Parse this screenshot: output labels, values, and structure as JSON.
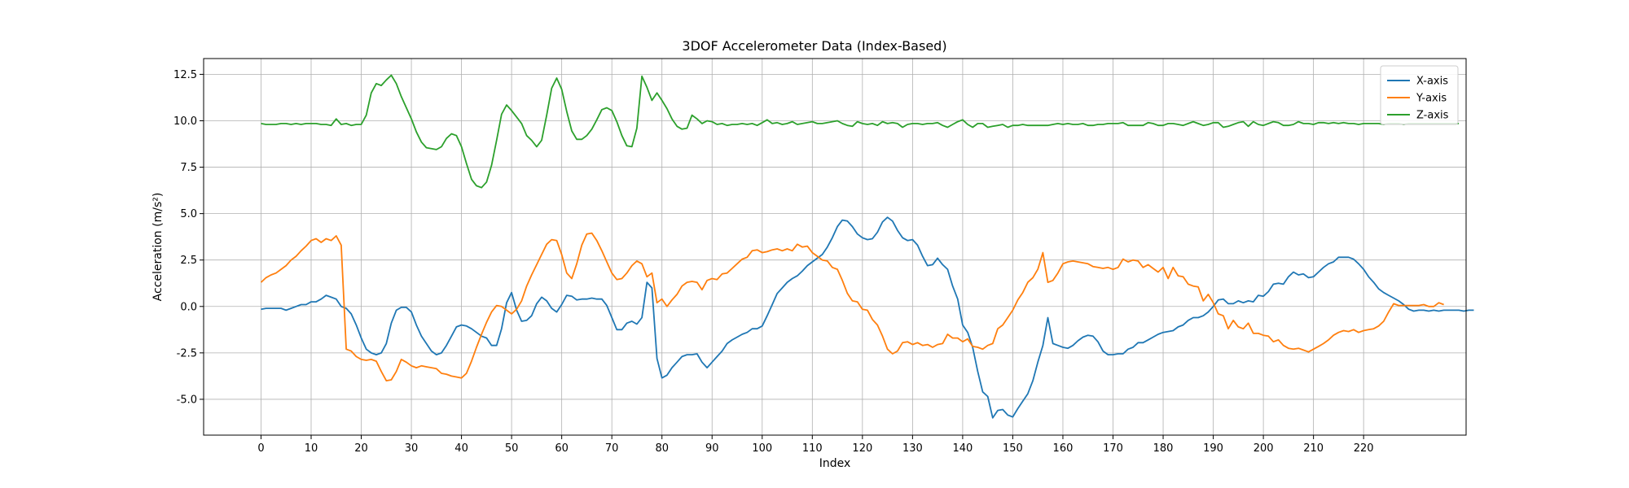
{
  "chart_data": {
    "type": "line",
    "title": "3DOF Accelerometer Data (Index-Based)",
    "xlabel": "Index",
    "ylabel": "Acceleration (m/s²)",
    "xlim": [
      -11.45,
      240.45
    ],
    "ylim": [
      -6.93,
      13.35
    ],
    "xticks": [
      0,
      10,
      20,
      30,
      40,
      50,
      60,
      70,
      80,
      90,
      100,
      110,
      120,
      130,
      140,
      150,
      160,
      170,
      180,
      190,
      200,
      210,
      220
    ],
    "yticks": [
      -5.0,
      -2.5,
      0.0,
      2.5,
      5.0,
      7.5,
      10.0,
      12.5
    ],
    "grid": true,
    "legend_position": "top-right",
    "x_start": 0,
    "series": [
      {
        "name": "X-axis",
        "color": "#1f77b4",
        "values": [
          -0.15,
          -0.1,
          -0.1,
          -0.1,
          -0.1,
          -0.2,
          -0.1,
          0.0,
          0.1,
          0.1,
          0.25,
          0.25,
          0.4,
          0.6,
          0.5,
          0.4,
          0.0,
          -0.1,
          -0.4,
          -1.0,
          -1.7,
          -2.3,
          -2.5,
          -2.6,
          -2.5,
          -2.0,
          -0.9,
          -0.2,
          -0.05,
          -0.05,
          -0.3,
          -1.0,
          -1.6,
          -2.0,
          -2.4,
          -2.6,
          -2.5,
          -2.1,
          -1.6,
          -1.1,
          -1.0,
          -1.05,
          -1.2,
          -1.4,
          -1.6,
          -1.7,
          -2.1,
          -2.1,
          -1.2,
          0.2,
          0.75,
          -0.2,
          -0.8,
          -0.75,
          -0.5,
          0.15,
          0.5,
          0.3,
          -0.1,
          -0.3,
          0.1,
          0.6,
          0.55,
          0.35,
          0.4,
          0.4,
          0.45,
          0.4,
          0.4,
          0.05,
          -0.6,
          -1.25,
          -1.25,
          -0.9,
          -0.8,
          -0.95,
          -0.6,
          1.3,
          1.0,
          -2.8,
          -3.85,
          -3.7,
          -3.3,
          -3.0,
          -2.7,
          -2.6,
          -2.6,
          -2.55,
          -3.0,
          -3.3,
          -3.0,
          -2.7,
          -2.4,
          -2.0,
          -1.8,
          -1.65,
          -1.5,
          -1.4,
          -1.2,
          -1.2,
          -1.05,
          -0.5,
          0.1,
          0.7,
          1.0,
          1.3,
          1.5,
          1.65,
          1.9,
          2.2,
          2.4,
          2.6,
          2.8,
          3.2,
          3.7,
          4.3,
          4.65,
          4.6,
          4.3,
          3.9,
          3.7,
          3.6,
          3.65,
          4.0,
          4.55,
          4.8,
          4.6,
          4.1,
          3.7,
          3.55,
          3.6,
          3.3,
          2.7,
          2.2,
          2.25,
          2.6,
          2.25,
          2.0,
          1.1,
          0.4,
          -1.0,
          -1.4,
          -2.2,
          -3.5,
          -4.6,
          -4.85,
          -6.0,
          -5.6,
          -5.55,
          -5.85,
          -5.95,
          -5.5,
          -5.1,
          -4.7,
          -4.0,
          -3.0,
          -2.1,
          -0.6,
          -2.0,
          -2.1,
          -2.2,
          -2.25,
          -2.1,
          -1.85,
          -1.65,
          -1.55,
          -1.6,
          -1.9,
          -2.4,
          -2.6,
          -2.6,
          -2.55,
          -2.55,
          -2.3,
          -2.2,
          -1.95,
          -1.95,
          -1.8,
          -1.65,
          -1.5,
          -1.4,
          -1.35,
          -1.3,
          -1.1,
          -1.0,
          -0.75,
          -0.6,
          -0.6,
          -0.5,
          -0.3,
          0.0,
          0.35,
          0.4,
          0.15,
          0.15,
          0.3,
          0.2,
          0.3,
          0.25,
          0.6,
          0.55,
          0.8,
          1.2,
          1.25,
          1.2,
          1.6,
          1.85,
          1.7,
          1.75,
          1.55,
          1.6,
          1.85,
          2.1,
          2.3,
          2.4,
          2.65,
          2.65,
          2.65,
          2.55,
          2.3,
          2.0,
          1.6,
          1.3,
          0.95,
          0.75,
          0.6,
          0.45,
          0.3,
          0.1,
          -0.15,
          -0.25,
          -0.2,
          -0.2,
          -0.25,
          -0.2,
          -0.25,
          -0.2,
          -0.2,
          -0.2,
          -0.2,
          -0.25,
          -0.2,
          -0.2
        ]
      },
      {
        "name": "Y-axis",
        "color": "#ff7f0e",
        "values": [
          1.3,
          1.55,
          1.7,
          1.8,
          2.0,
          2.2,
          2.5,
          2.7,
          3.0,
          3.25,
          3.55,
          3.65,
          3.45,
          3.65,
          3.55,
          3.8,
          3.3,
          -2.3,
          -2.4,
          -2.7,
          -2.85,
          -2.9,
          -2.85,
          -2.95,
          -3.5,
          -4.0,
          -3.95,
          -3.5,
          -2.85,
          -3.0,
          -3.2,
          -3.3,
          -3.2,
          -3.25,
          -3.3,
          -3.35,
          -3.6,
          -3.65,
          -3.75,
          -3.8,
          -3.85,
          -3.6,
          -2.95,
          -2.2,
          -1.5,
          -0.85,
          -0.3,
          0.05,
          0.0,
          -0.2,
          -0.4,
          -0.15,
          0.3,
          1.1,
          1.7,
          2.25,
          2.8,
          3.35,
          3.6,
          3.55,
          2.8,
          1.8,
          1.5,
          2.3,
          3.3,
          3.9,
          3.95,
          3.55,
          3.0,
          2.4,
          1.8,
          1.45,
          1.5,
          1.8,
          2.2,
          2.45,
          2.3,
          1.6,
          1.8,
          0.2,
          0.4,
          0.0,
          0.35,
          0.65,
          1.1,
          1.3,
          1.35,
          1.3,
          0.9,
          1.4,
          1.5,
          1.45,
          1.75,
          1.8,
          2.05,
          2.3,
          2.55,
          2.65,
          3.0,
          3.05,
          2.9,
          2.95,
          3.05,
          3.1,
          3.0,
          3.1,
          3.0,
          3.35,
          3.2,
          3.25,
          2.9,
          2.7,
          2.5,
          2.45,
          2.1,
          2.0,
          1.4,
          0.7,
          0.3,
          0.25,
          -0.15,
          -0.2,
          -0.7,
          -1.0,
          -1.6,
          -2.3,
          -2.55,
          -2.4,
          -1.95,
          -1.9,
          -2.05,
          -1.95,
          -2.1,
          -2.05,
          -2.2,
          -2.05,
          -2.0,
          -1.5,
          -1.7,
          -1.7,
          -1.9,
          -1.75,
          -2.15,
          -2.2,
          -2.3,
          -2.1,
          -2.0,
          -1.2,
          -1.0,
          -0.6,
          -0.2,
          0.35,
          0.75,
          1.3,
          1.55,
          2.0,
          2.9,
          1.3,
          1.4,
          1.8,
          2.3,
          2.4,
          2.45,
          2.4,
          2.35,
          2.3,
          2.15,
          2.1,
          2.05,
          2.1,
          2.0,
          2.1,
          2.55,
          2.4,
          2.5,
          2.45,
          2.1,
          2.25,
          2.05,
          1.85,
          2.1,
          1.5,
          2.1,
          1.65,
          1.6,
          1.2,
          1.1,
          1.05,
          0.3,
          0.65,
          0.2,
          -0.4,
          -0.5,
          -1.2,
          -0.75,
          -1.1,
          -1.2,
          -0.9,
          -1.45,
          -1.45,
          -1.55,
          -1.6,
          -1.9,
          -1.8,
          -2.1,
          -2.25,
          -2.3,
          -2.25,
          -2.35,
          -2.45,
          -2.3,
          -2.15,
          -2.0,
          -1.8,
          -1.55,
          -1.4,
          -1.3,
          -1.35,
          -1.25,
          -1.4,
          -1.3,
          -1.25,
          -1.2,
          -1.05,
          -0.8,
          -0.3,
          0.15,
          0.05,
          0.05,
          0.05,
          0.05,
          0.05,
          0.1,
          0.0,
          0.0,
          0.2,
          0.1
        ]
      },
      {
        "name": "Z-axis",
        "color": "#2ca02c",
        "values": [
          9.85,
          9.8,
          9.8,
          9.8,
          9.85,
          9.85,
          9.8,
          9.85,
          9.8,
          9.85,
          9.85,
          9.85,
          9.8,
          9.8,
          9.75,
          10.1,
          9.8,
          9.85,
          9.75,
          9.8,
          9.8,
          10.3,
          11.5,
          12.0,
          11.9,
          12.2,
          12.45,
          12.0,
          11.3,
          10.7,
          10.1,
          9.4,
          8.85,
          8.55,
          8.5,
          8.45,
          8.6,
          9.05,
          9.3,
          9.2,
          8.6,
          7.7,
          6.85,
          6.5,
          6.4,
          6.7,
          7.6,
          8.95,
          10.35,
          10.85,
          10.55,
          10.2,
          9.85,
          9.2,
          8.95,
          8.6,
          8.95,
          10.3,
          11.75,
          12.3,
          11.7,
          10.5,
          9.45,
          9.0,
          9.0,
          9.2,
          9.55,
          10.05,
          10.6,
          10.7,
          10.55,
          9.95,
          9.2,
          8.65,
          8.6,
          9.6,
          12.4,
          11.8,
          11.1,
          11.5,
          11.1,
          10.65,
          10.1,
          9.7,
          9.55,
          9.6,
          10.3,
          10.1,
          9.85,
          10.0,
          9.95,
          9.8,
          9.85,
          9.75,
          9.8,
          9.8,
          9.85,
          9.8,
          9.85,
          9.75,
          9.9,
          10.05,
          9.85,
          9.9,
          9.8,
          9.85,
          9.95,
          9.8,
          9.85,
          9.9,
          9.95,
          9.85,
          9.85,
          9.9,
          9.95,
          10.0,
          9.85,
          9.75,
          9.7,
          9.95,
          9.85,
          9.8,
          9.85,
          9.75,
          9.95,
          9.85,
          9.9,
          9.85,
          9.65,
          9.8,
          9.85,
          9.85,
          9.8,
          9.85,
          9.85,
          9.9,
          9.75,
          9.65,
          9.8,
          9.95,
          10.05,
          9.8,
          9.65,
          9.85,
          9.85,
          9.65,
          9.7,
          9.75,
          9.8,
          9.65,
          9.75,
          9.75,
          9.8,
          9.75,
          9.75,
          9.75,
          9.75,
          9.75,
          9.8,
          9.85,
          9.8,
          9.85,
          9.8,
          9.8,
          9.85,
          9.75,
          9.75,
          9.8,
          9.8,
          9.85,
          9.85,
          9.85,
          9.9,
          9.75,
          9.75,
          9.75,
          9.75,
          9.9,
          9.85,
          9.75,
          9.75,
          9.85,
          9.85,
          9.8,
          9.75,
          9.85,
          9.95,
          9.85,
          9.75,
          9.8,
          9.9,
          9.9,
          9.65,
          9.7,
          9.8,
          9.9,
          9.95,
          9.7,
          9.95,
          9.8,
          9.75,
          9.85,
          9.95,
          9.9,
          9.75,
          9.75,
          9.8,
          9.95,
          9.85,
          9.85,
          9.8,
          9.9,
          9.9,
          9.85,
          9.9,
          9.85,
          9.9,
          9.85,
          9.85,
          9.8,
          9.85,
          9.85,
          9.85,
          9.85,
          9.8,
          9.85,
          9.85,
          9.85,
          9.8,
          9.85,
          9.85,
          9.85,
          9.85,
          9.85,
          9.85,
          9.85,
          9.85,
          9.85,
          9.85,
          9.85
        ]
      }
    ]
  }
}
